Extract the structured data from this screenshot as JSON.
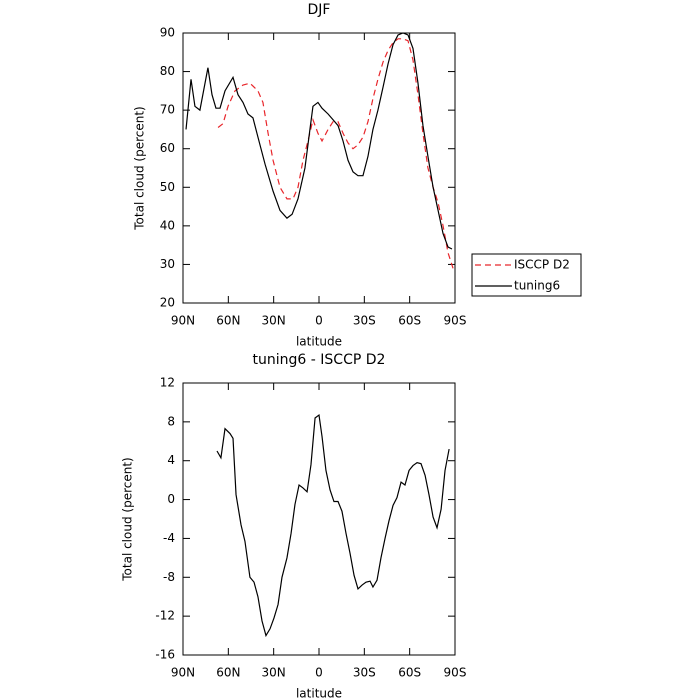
{
  "chart_data": [
    {
      "type": "line",
      "title": "DJF",
      "x_label": "latitude",
      "y_label": "Total cloud (percent)",
      "xlim": [
        90,
        -90
      ],
      "xticks": [
        {
          "value": 90,
          "label": "90N"
        },
        {
          "value": 60,
          "label": "60N"
        },
        {
          "value": 30,
          "label": "30N"
        },
        0,
        {
          "value": -30,
          "label": "30S"
        },
        {
          "value": -60,
          "label": "60S"
        },
        {
          "value": -90,
          "label": "90S"
        }
      ],
      "ylim": [
        20,
        90
      ],
      "yticks": [
        20,
        30,
        40,
        50,
        60,
        70,
        80,
        90
      ],
      "legend": "right",
      "series": [
        {
          "name": "ISCCP D2",
          "color": "#e8262b",
          "line_style": "dashed",
          "x": [
            66.8,
            63.5,
            60.2,
            55.6,
            50.3,
            45.7,
            40.4,
            37.1,
            33.7,
            30.4,
            25.8,
            21.2,
            17.2,
            13.9,
            10.6,
            7.3,
            4,
            0.7,
            -2,
            -6,
            -9.3,
            -12.6,
            -15.9,
            -19.2,
            -22.5,
            -25.8,
            -29.1,
            -32.4,
            -35.7,
            -39,
            -42.4,
            -45.7,
            -49,
            -52.3,
            -55.6,
            -58.9,
            -62.2,
            -65.5,
            -68.8,
            -72.1,
            -75.5,
            -78.8,
            -82.1,
            -85.4,
            -88.7
          ],
          "values": [
            65.5,
            66.5,
            71,
            75,
            76.5,
            77,
            75,
            72,
            64,
            57,
            50,
            47,
            47,
            50,
            57,
            62,
            67.5,
            64,
            62,
            65,
            67,
            67,
            64,
            61.5,
            60,
            61,
            63,
            67,
            73,
            78,
            82.5,
            85.5,
            87.5,
            88.5,
            88.5,
            88,
            83,
            74,
            64,
            55,
            50,
            46,
            40,
            33,
            29
          ]
        },
        {
          "name": "tuning6",
          "color": "#000000",
          "line_style": "solid",
          "x": [
            88,
            84.7,
            82.1,
            78.8,
            73.5,
            70.8,
            68.2,
            65.5,
            62.2,
            56.9,
            53.6,
            50.3,
            47,
            43.7,
            40.4,
            35.7,
            30.4,
            25.8,
            21.2,
            17.8,
            13.9,
            9.3,
            6,
            4,
            0.7,
            -2,
            -6,
            -9.3,
            -12.6,
            -15.9,
            -19.2,
            -22.5,
            -25.8,
            -29.1,
            -32.4,
            -35.7,
            -39,
            -42.4,
            -45.7,
            -49,
            -52.3,
            -55.6,
            -58.9,
            -62.2,
            -65.5,
            -68.8,
            -72.1,
            -75.5,
            -78.8,
            -82.1,
            -85.4,
            -88
          ],
          "values": [
            65,
            78,
            71,
            70,
            81,
            74,
            70.5,
            70.5,
            75,
            78.5,
            74,
            72,
            69,
            68,
            63,
            56,
            49,
            44,
            42,
            43,
            47,
            55,
            65,
            71,
            72,
            70.5,
            69,
            67.5,
            66,
            62,
            57,
            54,
            53,
            53,
            58,
            65,
            70,
            76,
            82,
            87,
            89.5,
            90,
            89.5,
            86,
            77,
            66,
            58,
            50,
            44,
            38,
            34.5,
            34
          ]
        }
      ]
    },
    {
      "type": "line",
      "title": "tuning6 - ISCCP D2",
      "x_label": "latitude",
      "y_label": "Total cloud (percent)",
      "xlim": [
        90,
        -90
      ],
      "xticks": [
        {
          "value": 90,
          "label": "90N"
        },
        {
          "value": 60,
          "label": "60N"
        },
        {
          "value": 30,
          "label": "30N"
        },
        0,
        {
          "value": -30,
          "label": "30S"
        },
        {
          "value": -60,
          "label": "60S"
        },
        {
          "value": -90,
          "label": "90S"
        }
      ],
      "ylim": [
        -16,
        12
      ],
      "yticks": [
        -16,
        -12,
        -8,
        -4,
        0,
        4,
        8,
        12
      ],
      "series": [
        {
          "color": "#000000",
          "line_style": "solid",
          "x": [
            67.5,
            64.9,
            62.2,
            58.9,
            56.9,
            54.9,
            51.6,
            49,
            45.7,
            43,
            40.4,
            37.7,
            35.1,
            32.4,
            29.8,
            27.1,
            24.5,
            21.2,
            18.5,
            15.9,
            13.2,
            10.6,
            7.9,
            5.3,
            2.6,
            0,
            -2,
            -4.6,
            -7.3,
            -9.9,
            -12.6,
            -15.2,
            -17.9,
            -20.5,
            -23.2,
            -25.8,
            -28.5,
            -31.1,
            -33.8,
            -35.7,
            -38.4,
            -41,
            -43.7,
            -46.3,
            -49,
            -51.6,
            -54.3,
            -56.9,
            -59.6,
            -62.2,
            -64.9,
            -67.5,
            -70.2,
            -72.8,
            -75.5,
            -78.1,
            -80.8,
            -83.4,
            -86.1
          ],
          "values": [
            5,
            4.3,
            7.3,
            6.8,
            6.3,
            0.5,
            -2.6,
            -4.3,
            -8,
            -8.5,
            -10,
            -12.5,
            -14,
            -13.3,
            -12.2,
            -10.8,
            -8,
            -6,
            -3.5,
            -0.5,
            1.5,
            1.2,
            0.8,
            3.6,
            8.4,
            8.7,
            6.5,
            3,
            1,
            -0.2,
            -0.2,
            -1.2,
            -3.5,
            -5.5,
            -7.8,
            -9.2,
            -8.8,
            -8.5,
            -8.4,
            -9,
            -8.3,
            -6,
            -4,
            -2.2,
            -0.6,
            0.2,
            1.8,
            1.5,
            3,
            3.5,
            3.8,
            3.7,
            2.5,
            0.5,
            -1.8,
            -2.9,
            -1,
            3,
            5.2
          ]
        }
      ]
    }
  ]
}
